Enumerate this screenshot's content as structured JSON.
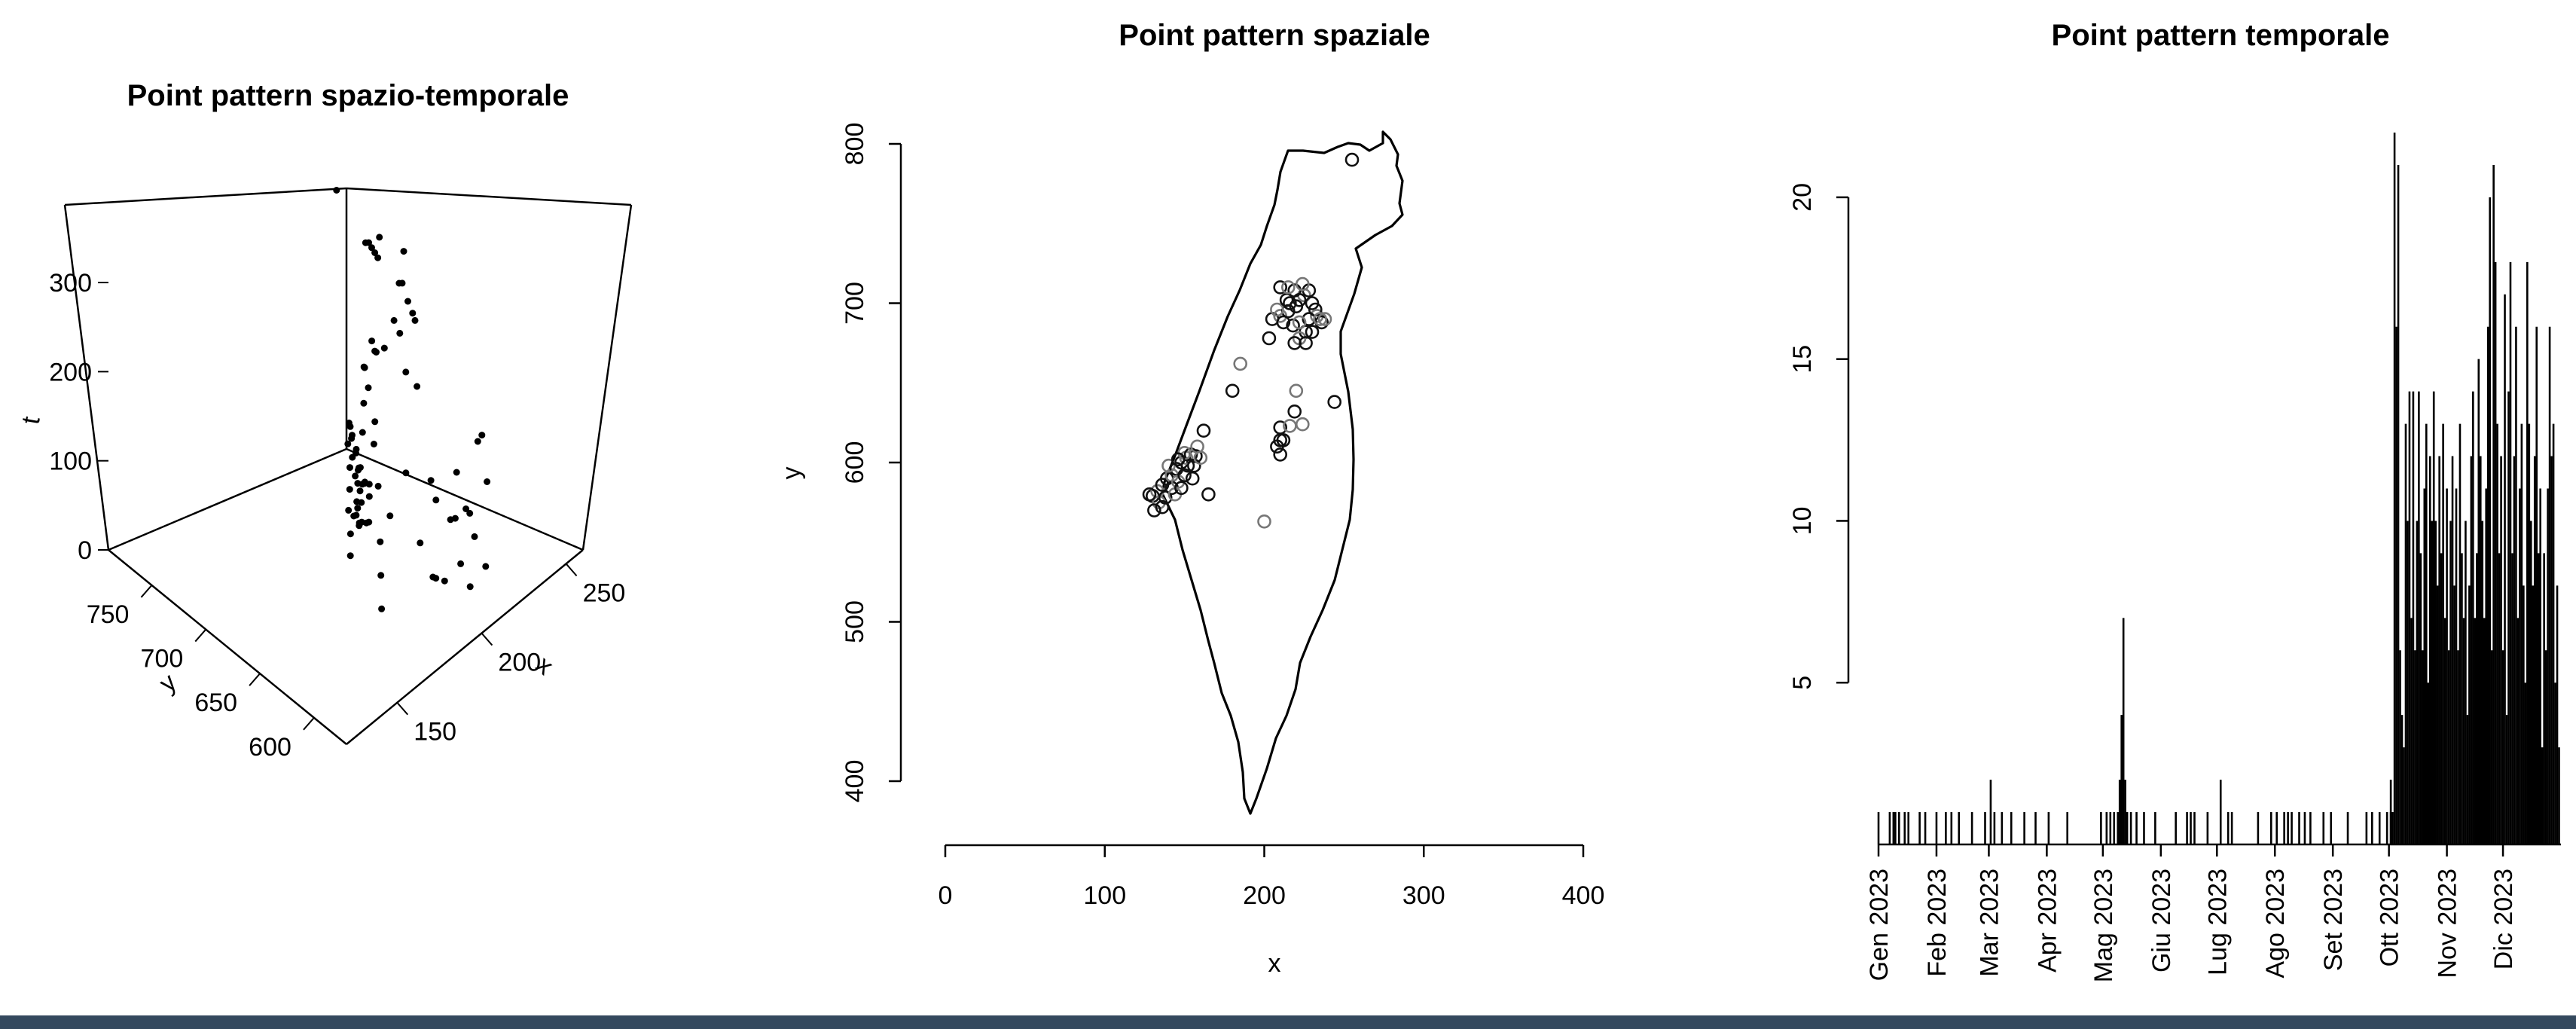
{
  "charts": {
    "panel3d": {
      "title": "Point pattern spazio-temporale",
      "xlabel": "x",
      "ylabel": "y",
      "zlabel": "t",
      "x_ticks": [
        "150",
        "200",
        "250"
      ],
      "y_ticks": [
        "600",
        "650",
        "700",
        "750"
      ],
      "z_ticks": [
        "0",
        "100",
        "200",
        "300"
      ]
    },
    "spatial": {
      "title": "Point pattern spaziale",
      "xlabel": "x",
      "ylabel": "y",
      "x_ticks": [
        "0",
        "100",
        "200",
        "300",
        "400"
      ],
      "y_ticks": [
        "400",
        "500",
        "600",
        "700",
        "800"
      ]
    },
    "temporal": {
      "title": "Point pattern temporale",
      "y_ticks": [
        "5",
        "10",
        "15",
        "20"
      ],
      "month_labels": [
        "Gen 2023",
        "Feb 2023",
        "Mar 2023",
        "Apr 2023",
        "Mag 2023",
        "Giu 2023",
        "Lug 2023",
        "Ago 2023",
        "Set 2023",
        "Ott 2023",
        "Nov 2023",
        "Dic 2023"
      ]
    }
  },
  "chart_data": [
    {
      "type": "scatter",
      "title": "Point pattern spazio-temporale",
      "xlabel": "x",
      "ylabel": "y",
      "zlabel": "t",
      "xlim": [
        120,
        260
      ],
      "ylim": [
        570,
        790
      ],
      "zlim": [
        0,
        360
      ],
      "points": [
        [
          130,
          582,
          200
        ],
        [
          132,
          585,
          220
        ],
        [
          134,
          590,
          240
        ],
        [
          136,
          592,
          260
        ],
        [
          138,
          595,
          280
        ],
        [
          140,
          600,
          300
        ],
        [
          142,
          602,
          320
        ],
        [
          144,
          604,
          310
        ],
        [
          146,
          606,
          290
        ],
        [
          148,
          605,
          270
        ],
        [
          150,
          604,
          250
        ],
        [
          152,
          603,
          230
        ],
        [
          154,
          602,
          210
        ],
        [
          156,
          600,
          300
        ],
        [
          135,
          588,
          305
        ],
        [
          140,
          596,
          315
        ],
        [
          145,
          600,
          285
        ],
        [
          150,
          602,
          295
        ],
        [
          138,
          590,
          275
        ],
        [
          142,
          594,
          255
        ],
        [
          132,
          582,
          245
        ],
        [
          136,
          586,
          235
        ],
        [
          144,
          598,
          225
        ],
        [
          148,
          600,
          215
        ],
        [
          152,
          604,
          325
        ],
        [
          156,
          606,
          335
        ],
        [
          158,
          604,
          265
        ],
        [
          133,
          580,
          255
        ],
        [
          137,
          584,
          265
        ],
        [
          141,
          592,
          275
        ],
        [
          146,
          596,
          245
        ],
        [
          150,
          600,
          235
        ],
        [
          154,
          602,
          225
        ],
        [
          139,
          588,
          215
        ],
        [
          143,
          594,
          205
        ],
        [
          147,
          598,
          195
        ],
        [
          151,
          600,
          185
        ],
        [
          155,
          604,
          175
        ],
        [
          210,
          690,
          330
        ],
        [
          215,
          695,
          310
        ],
        [
          220,
          700,
          290
        ],
        [
          225,
          705,
          270
        ],
        [
          228,
          690,
          250
        ],
        [
          230,
          685,
          230
        ],
        [
          222,
          680,
          210
        ],
        [
          218,
          688,
          190
        ],
        [
          212,
          696,
          320
        ],
        [
          224,
          702,
          300
        ],
        [
          232,
          692,
          280
        ],
        [
          226,
          684,
          260
        ],
        [
          216,
          676,
          240
        ],
        [
          208,
          684,
          220
        ],
        [
          236,
          690,
          200
        ],
        [
          240,
          694,
          180
        ],
        [
          214,
          700,
          160
        ],
        [
          220,
          710,
          140
        ],
        [
          200,
          640,
          120
        ],
        [
          205,
          620,
          100
        ],
        [
          210,
          610,
          80
        ],
        [
          215,
          600,
          60
        ],
        [
          220,
          630,
          40
        ],
        [
          200,
          615,
          20
        ],
        [
          205,
          612,
          10
        ],
        [
          210,
          605,
          30
        ],
        [
          225,
          620,
          50
        ],
        [
          230,
          640,
          70
        ],
        [
          245,
          640,
          90
        ],
        [
          190,
          650,
          110
        ],
        [
          185,
          660,
          130
        ],
        [
          170,
          580,
          150
        ],
        [
          165,
          600,
          170
        ],
        [
          200,
          565,
          190
        ],
        [
          255,
          790,
          210
        ],
        [
          220,
          700,
          170
        ],
        [
          226,
          708,
          150
        ],
        [
          232,
          690,
          135
        ],
        [
          236,
          686,
          115
        ],
        [
          240,
          636,
          95
        ],
        [
          218,
          645,
          75
        ],
        [
          224,
          622,
          55
        ],
        [
          196,
          606,
          35
        ],
        [
          206,
          590,
          25
        ],
        [
          212,
          585,
          45
        ],
        [
          160,
          600,
          65
        ],
        [
          166,
          610,
          85
        ],
        [
          172,
          620,
          105
        ]
      ]
    },
    {
      "type": "scatter",
      "title": "Point pattern spaziale",
      "xlabel": "x",
      "ylabel": "y",
      "xlim": [
        0,
        400
      ],
      "ylim": [
        400,
        800
      ],
      "points": [
        [
          130,
          579
        ],
        [
          133,
          582
        ],
        [
          136,
          586
        ],
        [
          139,
          590
        ],
        [
          142,
          592
        ],
        [
          145,
          596
        ],
        [
          148,
          600
        ],
        [
          151,
          603
        ],
        [
          154,
          605
        ],
        [
          157,
          604
        ],
        [
          134,
          575
        ],
        [
          138,
          578
        ],
        [
          142,
          584
        ],
        [
          146,
          588
        ],
        [
          150,
          592
        ],
        [
          128,
          580
        ],
        [
          140,
          598
        ],
        [
          152,
          598
        ],
        [
          156,
          598
        ],
        [
          160,
          603
        ],
        [
          131,
          570
        ],
        [
          136,
          572
        ],
        [
          144,
          580
        ],
        [
          148,
          584
        ],
        [
          155,
          590
        ],
        [
          158,
          610
        ],
        [
          162,
          620
        ],
        [
          165,
          580
        ],
        [
          150,
          606
        ],
        [
          146,
          602
        ],
        [
          205,
          690
        ],
        [
          210,
          692
        ],
        [
          215,
          695
        ],
        [
          220,
          698
        ],
        [
          225,
          705
        ],
        [
          228,
          708
        ],
        [
          230,
          700
        ],
        [
          233,
          692
        ],
        [
          236,
          688
        ],
        [
          226,
          682
        ],
        [
          222,
          678
        ],
        [
          218,
          686
        ],
        [
          212,
          688
        ],
        [
          208,
          696
        ],
        [
          214,
          702
        ],
        [
          219,
          708
        ],
        [
          224,
          712
        ],
        [
          230,
          682
        ],
        [
          232,
          696
        ],
        [
          238,
          690
        ],
        [
          203,
          678
        ],
        [
          210,
          710
        ],
        [
          215,
          710
        ],
        [
          222,
          702
        ],
        [
          228,
          690
        ],
        [
          235,
          690
        ],
        [
          219,
          675
        ],
        [
          226,
          675
        ],
        [
          185,
          662
        ],
        [
          180,
          645
        ],
        [
          244,
          638
        ],
        [
          220,
          645
        ],
        [
          219,
          632
        ],
        [
          210,
          622
        ],
        [
          216,
          623
        ],
        [
          210,
          614
        ],
        [
          208,
          610
        ],
        [
          224,
          624
        ],
        [
          212,
          614
        ],
        [
          210,
          605
        ],
        [
          200,
          563
        ],
        [
          255,
          790
        ],
        [
          216,
          700
        ],
        [
          222,
          688
        ]
      ]
    },
    {
      "type": "bar",
      "title": "Point pattern temporale",
      "x_type": "date",
      "x": [
        "2023-01-01",
        "2023-01-07",
        "2023-01-09",
        "2023-01-10",
        "2023-01-12",
        "2023-01-15",
        "2023-01-17",
        "2023-01-23",
        "2023-01-26",
        "2023-02-01",
        "2023-02-06",
        "2023-02-09",
        "2023-02-13",
        "2023-02-20",
        "2023-02-27",
        "2023-03-02",
        "2023-03-04",
        "2023-03-08",
        "2023-03-13",
        "2023-03-20",
        "2023-03-26",
        "2023-04-02",
        "2023-04-12",
        "2023-04-30",
        "2023-05-03",
        "2023-05-05",
        "2023-05-07",
        "2023-05-09",
        "2023-05-10",
        "2023-05-11",
        "2023-05-12",
        "2023-05-13",
        "2023-05-14",
        "2023-05-16",
        "2023-05-19",
        "2023-05-23",
        "2023-05-29",
        "2023-06-09",
        "2023-06-15",
        "2023-06-17",
        "2023-06-19",
        "2023-06-26",
        "2023-07-03",
        "2023-07-07",
        "2023-07-09",
        "2023-07-23",
        "2023-07-30",
        "2023-08-02",
        "2023-08-06",
        "2023-08-08",
        "2023-08-10",
        "2023-08-14",
        "2023-08-17",
        "2023-08-20",
        "2023-08-27",
        "2023-08-31",
        "2023-09-09",
        "2023-09-19",
        "2023-09-22",
        "2023-09-26",
        "2023-09-30",
        "2023-10-02"
      ],
      "values": [
        1,
        1,
        1,
        1,
        1,
        1,
        1,
        1,
        1,
        1,
        1,
        1,
        1,
        1,
        1,
        2,
        1,
        1,
        1,
        1,
        1,
        1,
        1,
        1,
        1,
        1,
        1,
        1,
        2,
        4,
        7,
        2,
        1,
        1,
        1,
        1,
        1,
        1,
        1,
        1,
        1,
        1,
        2,
        1,
        1,
        1,
        1,
        1,
        1,
        1,
        1,
        1,
        1,
        1,
        1,
        1,
        1,
        1,
        1,
        1,
        1,
        1
      ],
      "dense_period_values": [
        2,
        1,
        22,
        16,
        21,
        6,
        4,
        3,
        13,
        10,
        14,
        7,
        14,
        6,
        10,
        14,
        9,
        6,
        11,
        13,
        5,
        12,
        10,
        14,
        10,
        8,
        12,
        9,
        13,
        7,
        11,
        6,
        10,
        12,
        8,
        11,
        6,
        13,
        9,
        7,
        10,
        4,
        8,
        12,
        14,
        7,
        9,
        15,
        12,
        10,
        7,
        11,
        16,
        20,
        6,
        21,
        18,
        13,
        9,
        12,
        6,
        17,
        4,
        14,
        18,
        9,
        12,
        16,
        7,
        11,
        13,
        8,
        5,
        18,
        13,
        10,
        8,
        12,
        16,
        9,
        11,
        3,
        9,
        6,
        11,
        16,
        12,
        13,
        5,
        8,
        3
      ],
      "dense_period_start": "2023-10-02",
      "ylim": [
        0,
        22
      ]
    }
  ]
}
